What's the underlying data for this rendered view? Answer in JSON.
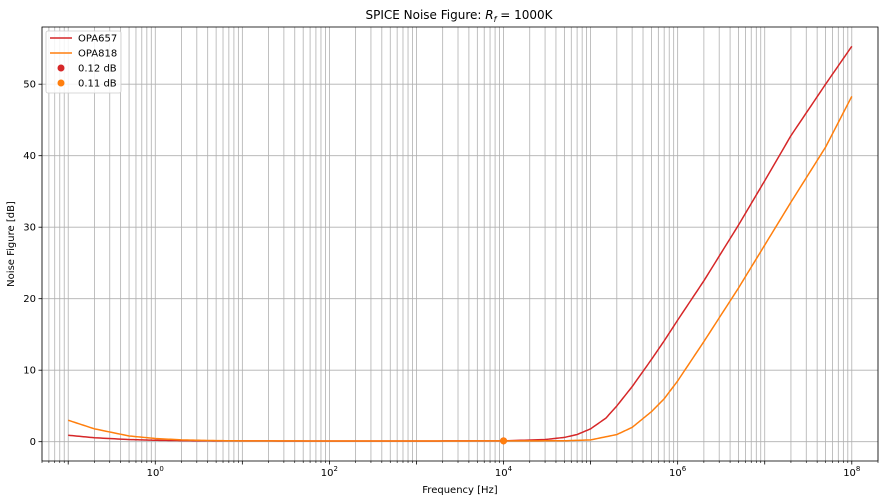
{
  "chart_data": {
    "type": "line",
    "title_main": "SPICE Noise Figure: ",
    "title_var": "R",
    "title_sub": "f",
    "title_rest": " = 1000K",
    "xlabel": "Frequency [Hz]",
    "ylabel": "Noise Figure [dB]",
    "xscale": "log",
    "xlim": [
      0.05,
      200000000
    ],
    "ylim": [
      -2.7,
      58
    ],
    "grid": true,
    "legend_position": "top-left",
    "x_ticks": [
      {
        "value": 1,
        "base": "10",
        "exp": "0"
      },
      {
        "value": 100,
        "base": "10",
        "exp": "2"
      },
      {
        "value": 10000,
        "base": "10",
        "exp": "4"
      },
      {
        "value": 1000000,
        "base": "10",
        "exp": "6"
      },
      {
        "value": 100000000,
        "base": "10",
        "exp": "8"
      }
    ],
    "y_ticks": [
      0,
      10,
      20,
      30,
      40,
      50
    ],
    "series": [
      {
        "name": "OPA657",
        "color": "#d62728",
        "x": [
          0.1,
          0.2,
          0.5,
          1,
          2,
          5,
          10,
          100,
          1000,
          10000,
          30000,
          50000,
          70000,
          100000,
          150000,
          200000,
          300000,
          500000,
          700000,
          1000000,
          2000000,
          5000000,
          10000000,
          20000000,
          50000000,
          100000000
        ],
        "y": [
          0.9,
          0.55,
          0.3,
          0.2,
          0.15,
          0.12,
          0.11,
          0.1,
          0.1,
          0.12,
          0.3,
          0.6,
          1.0,
          1.8,
          3.3,
          5.0,
          7.7,
          11.5,
          14.1,
          17.0,
          22.5,
          30.3,
          36.5,
          42.8,
          50.0,
          55.3
        ]
      },
      {
        "name": "OPA818",
        "color": "#ff7f0e",
        "x": [
          0.1,
          0.2,
          0.5,
          1,
          2,
          5,
          10,
          100,
          1000,
          10000,
          50000,
          100000,
          200000,
          300000,
          500000,
          700000,
          1000000,
          2000000,
          5000000,
          10000000,
          20000000,
          50000000,
          100000000
        ],
        "y": [
          3.0,
          1.8,
          0.8,
          0.45,
          0.25,
          0.15,
          0.12,
          0.1,
          0.1,
          0.11,
          0.13,
          0.25,
          1.0,
          2.0,
          4.2,
          6.0,
          8.5,
          14.0,
          21.5,
          27.5,
          33.5,
          41.2,
          48.3
        ]
      }
    ],
    "markers": [
      {
        "label": "0.12 dB",
        "color": "#d62728",
        "x": 10000,
        "y": 0.12
      },
      {
        "label": "0.11 dB",
        "color": "#ff7f0e",
        "x": 10000,
        "y": 0.11
      }
    ]
  }
}
